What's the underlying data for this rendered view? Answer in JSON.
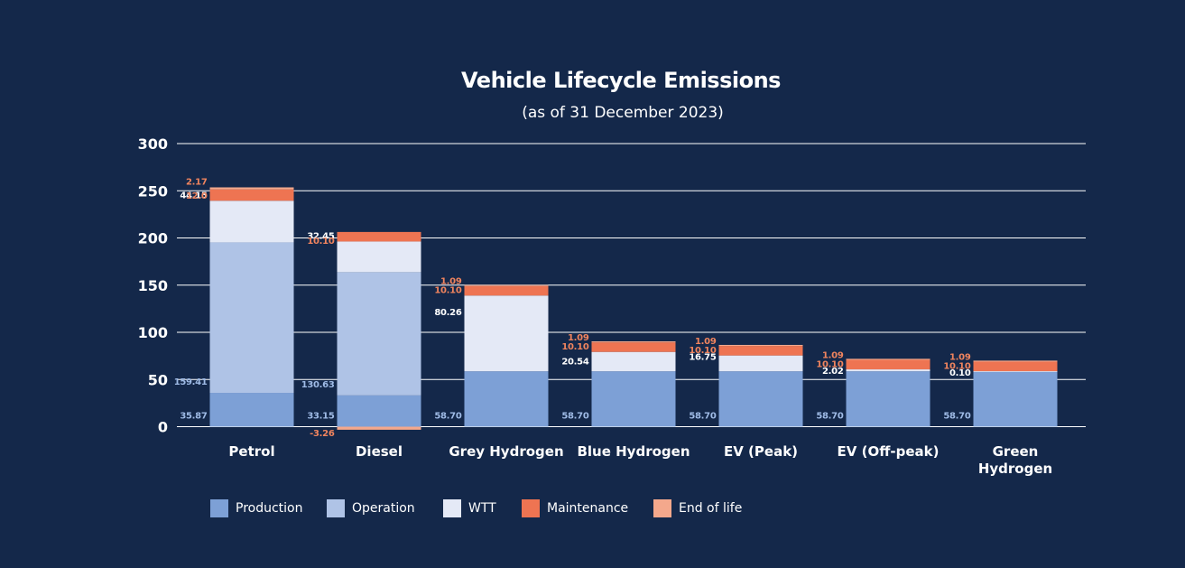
{
  "colors": {
    "background": "#14284a",
    "gridline": "#ffffff",
    "Production": "#7da0d6",
    "Operation": "#afc3e6",
    "WTT": "#e4e9f6",
    "Maintenance": "#ee7452",
    "End of life": "#f4a88c",
    "label_light_blue": "#9fbbe6",
    "label_white": "#ffffff",
    "label_orange": "#f0845e"
  },
  "chart_data": {
    "type": "bar",
    "stacked": true,
    "title": "Vehicle Lifecycle Emissions",
    "subtitle": "(as of 31 December 2023)",
    "xlabel": "",
    "ylabel": "",
    "ylim": [
      -5,
      300
    ],
    "yticks": [
      "300",
      "250",
      "200",
      "150",
      "100",
      "50",
      "0"
    ],
    "grid": true,
    "legend_position": "bottom",
    "categories": [
      {
        "lines": [
          "Petrol"
        ]
      },
      {
        "lines": [
          "Diesel"
        ]
      },
      {
        "lines": [
          "Grey Hydrogen"
        ]
      },
      {
        "lines": [
          "Blue Hydrogen"
        ]
      },
      {
        "lines": [
          "EV (Peak)"
        ]
      },
      {
        "lines": [
          "EV (Off-peak)"
        ]
      },
      {
        "lines": [
          "Green",
          "Hydrogen"
        ]
      }
    ],
    "series": [
      {
        "name": "Production",
        "values": [
          35.87,
          33.15,
          58.7,
          58.7,
          58.7,
          58.7,
          58.7
        ],
        "labels": [
          "35.87",
          "33.15",
          "58.70",
          "58.70",
          "58.70",
          "58.70",
          "58.70"
        ]
      },
      {
        "name": "Operation",
        "values": [
          159.41,
          130.63,
          0,
          0,
          0,
          0,
          0
        ],
        "labels": [
          "159.41",
          "130.63",
          "",
          "",
          "",
          "",
          ""
        ]
      },
      {
        "name": "WTT",
        "values": [
          44.15,
          32.45,
          80.26,
          20.54,
          16.75,
          2.02,
          0.1
        ],
        "labels": [
          "44.15",
          "32.45",
          "80.26",
          "20.54",
          "16.75",
          "2.02",
          "0.10"
        ]
      },
      {
        "name": "Maintenance",
        "values": [
          12.0,
          10.1,
          10.1,
          10.1,
          10.1,
          10.1,
          10.1
        ],
        "labels": [
          "12.0",
          "10.10",
          "10.10",
          "10.10",
          "10.10",
          "10.10",
          "10.10"
        ]
      },
      {
        "name": "End of life",
        "values": [
          2.17,
          -3.26,
          1.09,
          1.09,
          1.09,
          1.09,
          1.09
        ],
        "labels": [
          "2.17",
          "-3.26",
          "1.09",
          "1.09",
          "1.09",
          "1.09",
          "1.09"
        ]
      }
    ]
  }
}
